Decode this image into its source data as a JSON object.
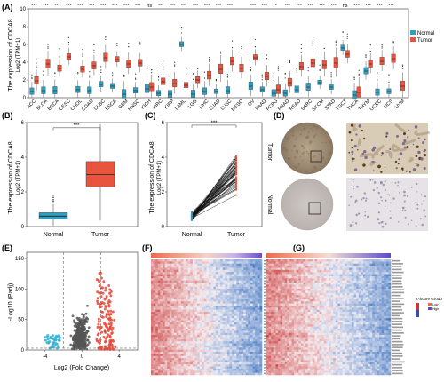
{
  "panels": {
    "A": "(A)",
    "B": "(B)",
    "C": "(C)",
    "D": "(D)",
    "E": "(E)",
    "F": "(F)",
    "G": "(G)"
  },
  "colors": {
    "normal": "#2e9fc0",
    "tumor": "#e8543d",
    "volcano_up": "#e84a3a",
    "volcano_down": "#3ab5d6",
    "volcano_ns": "#555555"
  },
  "chart_data": [
    {
      "type": "box",
      "panel": "A",
      "ylabel": "The expression of CDCA8",
      "ylabel_sub": "Log2 (TPM+1)",
      "ylim": [
        0,
        10
      ],
      "yticks": [
        0,
        2,
        4,
        6,
        8,
        10
      ],
      "legend": {
        "title": "",
        "items": [
          "Normal",
          "Tumor"
        ],
        "placement": "top-right"
      },
      "categories": [
        "ACC",
        "BLCA",
        "BRCA",
        "CESC",
        "CHOL",
        "COAD",
        "DLBC",
        "ESCA",
        "GBM",
        "HNSC",
        "KICH",
        "KIRC",
        "KIRP",
        "LAML",
        "LGG",
        "LIHC",
        "LUAD",
        "LUSC",
        "MESO",
        "OV",
        "PAAD",
        "PCPG",
        "PRAD",
        "READ",
        "SARC",
        "SKCM",
        "STAD",
        "TGCT",
        "THCA",
        "THYM",
        "UCEC",
        "UCS",
        "UVM"
      ],
      "significance": [
        "***",
        "***",
        "***",
        "***",
        "***",
        "***",
        "***",
        "***",
        "***",
        "***",
        "ns",
        "***",
        "***",
        "***",
        "***",
        "***",
        "***",
        "***",
        "",
        "***",
        "***",
        "*",
        "***",
        "***",
        "***",
        "***",
        "***",
        "ns",
        "***",
        "***",
        "***",
        "***",
        ""
      ],
      "normal_median": [
        0.7,
        0.8,
        0.8,
        null,
        0.9,
        0.8,
        1.5,
        1.3,
        0.4,
        0.8,
        1.0,
        0.5,
        0.4,
        6.0,
        0.4,
        0.7,
        0.7,
        0.8,
        null,
        1.3,
        0.9,
        0.5,
        0.5,
        0.9,
        1.2,
        1.7,
        1.2,
        5.6,
        0.3,
        3.0,
        0.6,
        0.7,
        null
      ],
      "tumor_median": [
        1.9,
        3.8,
        3.3,
        4.6,
        3.2,
        3.6,
        4.5,
        4.3,
        3.8,
        3.9,
        1.2,
        1.8,
        1.6,
        1.4,
        2.0,
        2.5,
        3.2,
        4.1,
        3.3,
        4.5,
        2.4,
        0.9,
        1.7,
        3.5,
        3.9,
        3.7,
        3.9,
        4.9,
        0.6,
        3.8,
        4.1,
        4.4,
        1.3
      ]
    },
    {
      "type": "box",
      "panel": "B",
      "ylabel": "The expression of CDCA8",
      "ylabel_sub": "Log2 (TPM+1)",
      "ylim": [
        0,
        6
      ],
      "yticks": [
        0,
        2,
        4,
        6
      ],
      "categories": [
        "Normal",
        "Tumor"
      ],
      "medians": [
        0.6,
        3.0
      ],
      "significance": "***"
    },
    {
      "type": "paired",
      "panel": "C",
      "ylabel": "The expression of CDCA8",
      "ylabel_sub": "Log2 (TPM+1)",
      "ylim": [
        0,
        6
      ],
      "yticks": [
        0,
        2,
        4,
        6
      ],
      "categories": [
        "Normal",
        "Tumor"
      ],
      "significance": "***"
    },
    {
      "type": "scatter",
      "panel": "E",
      "ylabel": "-Log10 (Padj)",
      "xlabel": "Log2 (Fold Change)",
      "xlim": [
        -6,
        6
      ],
      "ylim": [
        0,
        160
      ],
      "xticks": [
        -4,
        0,
        4
      ],
      "yticks": [
        0,
        50,
        100,
        150
      ]
    },
    {
      "type": "heatmap",
      "panel": "F"
    },
    {
      "type": "heatmap",
      "panel": "G",
      "legend": {
        "title": "Z-Score  Group",
        "items": [
          "Low",
          "High"
        ],
        "placement": "right"
      }
    }
  ],
  "ihc": {
    "row_labels": [
      "Tumor",
      "Normal"
    ]
  }
}
